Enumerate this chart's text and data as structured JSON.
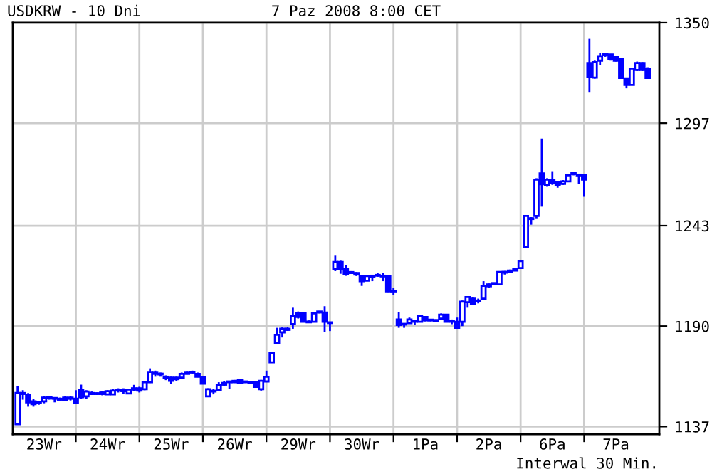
{
  "chart_data": {
    "type": "candlestick",
    "title": "USDKRW - 10 Dni",
    "subtitle": "7 Paz 2008 8:00 CET",
    "annotations": [
      "Interwal 30 Min."
    ],
    "color": "#0000ff",
    "categories": [
      null,
      null,
      null,
      null,
      null,
      "23Wr",
      null,
      null,
      null,
      null,
      null,
      null,
      null,
      null,
      null,
      null,
      null,
      "24Wr",
      null,
      null,
      null,
      null,
      null,
      null,
      null,
      null,
      null,
      null,
      null,
      "25Wr",
      null,
      null,
      null,
      null,
      null,
      null,
      null,
      null,
      null,
      null,
      null,
      "26Wr",
      null,
      null,
      null,
      null,
      null,
      null,
      null,
      null,
      null,
      null,
      null,
      "29Wr",
      null,
      null,
      null,
      null,
      null,
      null,
      null,
      null,
      null,
      null,
      null,
      "30Wr",
      null,
      null,
      null,
      null,
      null,
      null,
      null,
      null,
      null,
      null,
      null,
      "1Pa",
      null,
      null,
      null,
      null,
      null,
      null,
      null,
      null,
      null,
      null,
      null,
      "2Pa",
      null,
      null,
      null,
      null,
      null,
      null,
      null,
      null,
      null,
      null,
      null,
      "6Pa",
      null,
      null,
      null,
      null,
      null,
      null,
      null,
      null,
      null,
      null,
      null,
      "7Pa",
      null,
      null,
      null,
      null,
      null,
      null
    ],
    "ohlc": [
      [
        1138.2,
        1158.4,
        1138.2,
        1154.7
      ],
      [
        1154.7,
        1156.2,
        1151.2,
        1154.2
      ],
      [
        1153.7,
        1154.7,
        1147.5,
        1149.8
      ],
      [
        1150.3,
        1151.7,
        1147.5,
        1148.8
      ],
      [
        1149.3,
        1150.3,
        1148.5,
        1149.8
      ],
      [
        1150.3,
        1153,
        1149.3,
        1152.3
      ],
      [
        1152.3,
        1153,
        1151.2,
        1152
      ],
      [
        1152,
        1152.5,
        1149.8,
        1151.7
      ],
      [
        1151.7,
        1152.3,
        1150.8,
        1151.2
      ],
      [
        1151.2,
        1153,
        1150.8,
        1152.3
      ],
      [
        1152.3,
        1153,
        1150.8,
        1151.7
      ],
      [
        1151.7,
        1156.2,
        1149.3,
        1149.5
      ],
      [
        1156.2,
        1159.1,
        1151.7,
        1152.5
      ],
      [
        1153,
        1156.2,
        1151.7,
        1155.5
      ],
      [
        1154.7,
        1155.5,
        1153.7,
        1154.2
      ],
      [
        1154.2,
        1155,
        1153.7,
        1154.5
      ],
      [
        1154.2,
        1155.5,
        1153.5,
        1155
      ],
      [
        1154,
        1156.2,
        1153.7,
        1155.7
      ],
      [
        1154,
        1157,
        1153.7,
        1156
      ],
      [
        1156,
        1157.2,
        1155,
        1156.5
      ],
      [
        1156.5,
        1157.2,
        1154.2,
        1155.7
      ],
      [
        1154.5,
        1157,
        1154.2,
        1156.5
      ],
      [
        1156.5,
        1159,
        1155.7,
        1157.2
      ],
      [
        1157.2,
        1158,
        1155,
        1156
      ],
      [
        1156.7,
        1161,
        1156.2,
        1160.4
      ],
      [
        1160.4,
        1167.7,
        1160,
        1165.8
      ],
      [
        1165.8,
        1166.5,
        1163.3,
        1164.8
      ],
      [
        1164.8,
        1165.5,
        1163.3,
        1164.5
      ],
      [
        1163.3,
        1164,
        1161.5,
        1162.8
      ],
      [
        1162.8,
        1163.3,
        1159.6,
        1161.1
      ],
      [
        1162,
        1163.3,
        1161.1,
        1162.8
      ],
      [
        1162.8,
        1165.5,
        1162.3,
        1164.8
      ],
      [
        1164.8,
        1166.3,
        1164.5,
        1165.8
      ],
      [
        1165.8,
        1166.5,
        1165,
        1165.5
      ],
      [
        1164.8,
        1165.5,
        1163,
        1163.3
      ],
      [
        1163.3,
        1163.3,
        1159.6,
        1159.6
      ],
      [
        1153,
        1157.2,
        1153,
        1156.7
      ],
      [
        1155.5,
        1156.7,
        1154,
        1155.7
      ],
      [
        1156.2,
        1160.4,
        1155.7,
        1159.1
      ],
      [
        1159.1,
        1161,
        1158.4,
        1160
      ],
      [
        1160.4,
        1161.1,
        1156.7,
        1160.4
      ],
      [
        1160.4,
        1161.6,
        1160,
        1161.1
      ],
      [
        1161.6,
        1162,
        1159.6,
        1159.9
      ],
      [
        1160.4,
        1161.1,
        1160,
        1160.8
      ],
      [
        1160.4,
        1160.8,
        1159.6,
        1160
      ],
      [
        1160.4,
        1161.1,
        1157.5,
        1157.9
      ],
      [
        1156.7,
        1161.6,
        1156,
        1161.1
      ],
      [
        1160.8,
        1166.5,
        1160.4,
        1163.3
      ],
      [
        1170.9,
        1176.5,
        1170.9,
        1175.9
      ],
      [
        1181.2,
        1189.1,
        1181,
        1185.4
      ],
      [
        1186.7,
        1189.3,
        1184,
        1188.6
      ],
      [
        1188,
        1189.5,
        1187.5,
        1188.6
      ],
      [
        1191.1,
        1199.7,
        1188.6,
        1195.3
      ],
      [
        1196.7,
        1197.7,
        1194,
        1194.8
      ],
      [
        1196.7,
        1197,
        1192,
        1192.3
      ],
      [
        1192.3,
        1193,
        1191.6,
        1192
      ],
      [
        1192.3,
        1197,
        1192,
        1196.7
      ],
      [
        1197.7,
        1198,
        1196.7,
        1197.2
      ],
      [
        1197.2,
        1200.5,
        1186.7,
        1192.3
      ],
      [
        1192,
        1192.3,
        1187.4,
        1191.6
      ],
      [
        1220.1,
        1227.5,
        1219,
        1223.8
      ],
      [
        1223.8,
        1224.5,
        1217.6,
        1220.1
      ],
      [
        1220.1,
        1222,
        1216.5,
        1217.6
      ],
      [
        1218.5,
        1219,
        1217.6,
        1218
      ],
      [
        1218,
        1218.5,
        1216.4,
        1217.2
      ],
      [
        1216.4,
        1217,
        1211.2,
        1213.7
      ],
      [
        1214,
        1216.8,
        1213.7,
        1216.4
      ],
      [
        1216,
        1217,
        1213.7,
        1216.6
      ],
      [
        1216.6,
        1218,
        1216,
        1217
      ],
      [
        1216.4,
        1218,
        1213.7,
        1216.2
      ],
      [
        1216.2,
        1216.4,
        1208,
        1208.3
      ],
      [
        1208.3,
        1210.3,
        1206.3,
        1208.3
      ],
      [
        1193.5,
        1197.3,
        1189.1,
        1190.6
      ],
      [
        1190.8,
        1191.5,
        1189.1,
        1191
      ],
      [
        1191.5,
        1194.5,
        1191.5,
        1193.5
      ],
      [
        1192.3,
        1193,
        1190.6,
        1192.5
      ],
      [
        1192.3,
        1195.5,
        1192,
        1195.3
      ],
      [
        1194.8,
        1195.3,
        1192.5,
        1193
      ],
      [
        1193,
        1193.5,
        1192.5,
        1193
      ],
      [
        1193,
        1193.5,
        1192.5,
        1192.8
      ],
      [
        1194,
        1196.7,
        1193.5,
        1196
      ],
      [
        1196,
        1196.3,
        1192,
        1192.3
      ],
      [
        1192.5,
        1193.5,
        1191,
        1192.3
      ],
      [
        1192.3,
        1194.5,
        1189,
        1189.1
      ],
      [
        1192.3,
        1203.5,
        1190,
        1202.9
      ],
      [
        1202.6,
        1205.8,
        1199.7,
        1205.3
      ],
      [
        1204.5,
        1205.3,
        1201.5,
        1201.8
      ],
      [
        1203.5,
        1204.5,
        1202,
        1203
      ],
      [
        1204.5,
        1213.7,
        1204,
        1211.2
      ],
      [
        1211,
        1212.5,
        1210,
        1212
      ],
      [
        1212,
        1213,
        1211.5,
        1212.7
      ],
      [
        1212,
        1219,
        1211.8,
        1218.6
      ],
      [
        1218.6,
        1219.1,
        1217.2,
        1218.2
      ],
      [
        1218.6,
        1219.8,
        1218,
        1219.3
      ],
      [
        1219.3,
        1220.6,
        1219,
        1220.1
      ],
      [
        1220.6,
        1224.8,
        1220.6,
        1224.3
      ],
      [
        1231.6,
        1248.5,
        1231.6,
        1248.1
      ],
      [
        1246.5,
        1247.5,
        1243.5,
        1246.8
      ],
      [
        1248.1,
        1268,
        1246.5,
        1267.3
      ],
      [
        1270.5,
        1288.9,
        1253,
        1264.8
      ],
      [
        1264.3,
        1268,
        1263.5,
        1267.3
      ],
      [
        1267.3,
        1271.7,
        1264.5,
        1265.3
      ],
      [
        1265.8,
        1266.5,
        1263,
        1264.3
      ],
      [
        1265,
        1267,
        1264.5,
        1266.3
      ],
      [
        1266.3,
        1270,
        1266,
        1269.5
      ],
      [
        1270.2,
        1271.5,
        1269.5,
        1270.7
      ],
      [
        1269.7,
        1270.2,
        1265,
        1269.5
      ],
      [
        1269.9,
        1270.2,
        1258.2,
        1267.3
      ],
      [
        1328.7,
        1341.5,
        1313.5,
        1321.4
      ],
      [
        1321,
        1330,
        1320.5,
        1329.2
      ],
      [
        1330,
        1334,
        1327.5,
        1332.4
      ],
      [
        1333,
        1334,
        1332,
        1333.5
      ],
      [
        1333.2,
        1333.5,
        1330,
        1330.7
      ],
      [
        1331.8,
        1332,
        1329.5,
        1330
      ],
      [
        1330.7,
        1331,
        1320.9,
        1320.9
      ],
      [
        1320.7,
        1321,
        1315.4,
        1317.2
      ],
      [
        1317.2,
        1326.3,
        1317,
        1325.8
      ],
      [
        1325.1,
        1329.5,
        1324.5,
        1328.7
      ],
      [
        1328.7,
        1329.2,
        1324.5,
        1325.1
      ],
      [
        1325.8,
        1326.5,
        1320.9,
        1320.9
      ]
    ],
    "ylim": [
      1133,
      1350
    ],
    "yticks": [
      1137,
      1190,
      1243,
      1297,
      1350
    ],
    "grid": true
  }
}
